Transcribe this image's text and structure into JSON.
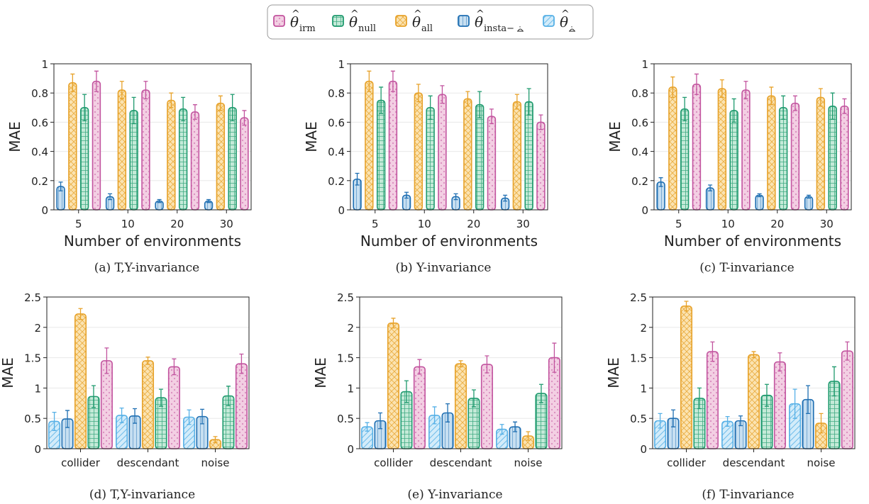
{
  "legend": {
    "items": [
      {
        "key": "irm",
        "label": "irm",
        "color": "#c2549f"
      },
      {
        "key": "null",
        "label": "null",
        "color": "#1f9a6e"
      },
      {
        "key": "all",
        "label": "all",
        "color": "#e7a22a"
      },
      {
        "key": "insta",
        "label": "insta−",
        "color": "#1f6fb2"
      },
      {
        "key": "cheb",
        "label": "",
        "color": "#56b0e6"
      }
    ]
  },
  "chart_data": [
    {
      "type": "bar",
      "caption": "(a) T,Y-invariance",
      "xlabel": "Number of environments",
      "ylabel": "MAE",
      "categories": [
        "5",
        "10",
        "20",
        "30"
      ],
      "ylim": [
        0,
        1
      ],
      "yticks": [
        "0",
        "0.2",
        "0.4",
        "0.6",
        "0.8",
        "1"
      ],
      "grid": true,
      "series": [
        {
          "key": "insta",
          "values": [
            0.16,
            0.09,
            0.06,
            0.06
          ],
          "err": [
            0.03,
            0.02,
            0.01,
            0.01
          ]
        },
        {
          "key": "all",
          "values": [
            0.87,
            0.82,
            0.75,
            0.73
          ],
          "err": [
            0.06,
            0.06,
            0.05,
            0.05
          ]
        },
        {
          "key": "null",
          "values": [
            0.7,
            0.68,
            0.69,
            0.7
          ],
          "err": [
            0.09,
            0.09,
            0.08,
            0.09
          ]
        },
        {
          "key": "irm",
          "values": [
            0.88,
            0.82,
            0.67,
            0.63
          ],
          "err": [
            0.07,
            0.06,
            0.05,
            0.05
          ]
        }
      ]
    },
    {
      "type": "bar",
      "caption": "(b) Y-invariance",
      "xlabel": "Number of environments",
      "ylabel": "MAE",
      "categories": [
        "5",
        "10",
        "20",
        "30"
      ],
      "ylim": [
        0,
        1
      ],
      "yticks": [
        "0",
        "0.2",
        "0.4",
        "0.6",
        "0.8",
        "1"
      ],
      "grid": true,
      "series": [
        {
          "key": "insta",
          "values": [
            0.21,
            0.1,
            0.09,
            0.08
          ],
          "err": [
            0.04,
            0.02,
            0.02,
            0.02
          ]
        },
        {
          "key": "all",
          "values": [
            0.88,
            0.8,
            0.76,
            0.74
          ],
          "err": [
            0.07,
            0.06,
            0.05,
            0.05
          ]
        },
        {
          "key": "null",
          "values": [
            0.75,
            0.7,
            0.72,
            0.74
          ],
          "err": [
            0.09,
            0.08,
            0.09,
            0.09
          ]
        },
        {
          "key": "irm",
          "values": [
            0.88,
            0.79,
            0.64,
            0.6
          ],
          "err": [
            0.07,
            0.06,
            0.05,
            0.05
          ]
        }
      ]
    },
    {
      "type": "bar",
      "caption": "(c) T-invariance",
      "xlabel": "Number of environments",
      "ylabel": "MAE",
      "categories": [
        "5",
        "10",
        "20",
        "30"
      ],
      "ylim": [
        0,
        1
      ],
      "yticks": [
        "0",
        "0.2",
        "0.4",
        "0.6",
        "0.8",
        "1"
      ],
      "grid": true,
      "series": [
        {
          "key": "insta",
          "values": [
            0.19,
            0.15,
            0.1,
            0.09
          ],
          "err": [
            0.03,
            0.02,
            0.01,
            0.01
          ]
        },
        {
          "key": "all",
          "values": [
            0.84,
            0.83,
            0.78,
            0.77
          ],
          "err": [
            0.07,
            0.06,
            0.06,
            0.06
          ]
        },
        {
          "key": "null",
          "values": [
            0.69,
            0.68,
            0.7,
            0.71
          ],
          "err": [
            0.08,
            0.08,
            0.08,
            0.09
          ]
        },
        {
          "key": "irm",
          "values": [
            0.86,
            0.82,
            0.73,
            0.71
          ],
          "err": [
            0.07,
            0.06,
            0.05,
            0.05
          ]
        }
      ]
    },
    {
      "type": "bar",
      "caption": "(d) T,Y-invariance",
      "xlabel": "",
      "ylabel": "MAE",
      "categories": [
        "collider",
        "descendant",
        "noise"
      ],
      "ylim": [
        0,
        2.5
      ],
      "yticks": [
        "0",
        "0.5",
        "1",
        "1.5",
        "2",
        "2.5"
      ],
      "grid": true,
      "series": [
        {
          "key": "cheb",
          "values": [
            0.45,
            0.55,
            0.52
          ],
          "err": [
            0.15,
            0.12,
            0.12
          ]
        },
        {
          "key": "insta",
          "values": [
            0.49,
            0.54,
            0.53
          ],
          "err": [
            0.14,
            0.12,
            0.12
          ]
        },
        {
          "key": "all",
          "values": [
            2.22,
            1.45,
            0.15
          ],
          "err": [
            0.09,
            0.06,
            0.05
          ]
        },
        {
          "key": "null",
          "values": [
            0.86,
            0.84,
            0.87
          ],
          "err": [
            0.18,
            0.14,
            0.16
          ]
        },
        {
          "key": "irm",
          "values": [
            1.45,
            1.35,
            1.4
          ],
          "err": [
            0.21,
            0.13,
            0.16
          ]
        }
      ]
    },
    {
      "type": "bar",
      "caption": "(e) Y-invariance",
      "xlabel": "",
      "ylabel": "MAE",
      "categories": [
        "collider",
        "descendant",
        "noise"
      ],
      "ylim": [
        0,
        2.5
      ],
      "yticks": [
        "0",
        "0.5",
        "1",
        "1.5",
        "2",
        "2.5"
      ],
      "grid": true,
      "series": [
        {
          "key": "cheb",
          "values": [
            0.36,
            0.55,
            0.32
          ],
          "err": [
            0.07,
            0.14,
            0.08
          ]
        },
        {
          "key": "insta",
          "values": [
            0.46,
            0.59,
            0.36
          ],
          "err": [
            0.13,
            0.15,
            0.08
          ]
        },
        {
          "key": "all",
          "values": [
            2.07,
            1.4,
            0.21
          ],
          "err": [
            0.08,
            0.05,
            0.07
          ]
        },
        {
          "key": "null",
          "values": [
            0.94,
            0.83,
            0.91
          ],
          "err": [
            0.18,
            0.14,
            0.15
          ]
        },
        {
          "key": "irm",
          "values": [
            1.35,
            1.39,
            1.5
          ],
          "err": [
            0.12,
            0.14,
            0.24
          ]
        }
      ]
    },
    {
      "type": "bar",
      "caption": "(f) T-invariance",
      "xlabel": "",
      "ylabel": "MAE",
      "categories": [
        "collider",
        "descendant",
        "noise"
      ],
      "ylim": [
        0,
        2.5
      ],
      "yticks": [
        "0",
        "0.5",
        "1",
        "1.5",
        "2",
        "2.5"
      ],
      "grid": true,
      "series": [
        {
          "key": "cheb",
          "values": [
            0.46,
            0.45,
            0.74
          ],
          "err": [
            0.12,
            0.08,
            0.24
          ]
        },
        {
          "key": "insta",
          "values": [
            0.5,
            0.46,
            0.81
          ],
          "err": [
            0.14,
            0.08,
            0.23
          ]
        },
        {
          "key": "all",
          "values": [
            2.35,
            1.55,
            0.42
          ],
          "err": [
            0.08,
            0.05,
            0.16
          ]
        },
        {
          "key": "null",
          "values": [
            0.83,
            0.88,
            1.11
          ],
          "err": [
            0.17,
            0.18,
            0.24
          ]
        },
        {
          "key": "irm",
          "values": [
            1.6,
            1.43,
            1.61
          ],
          "err": [
            0.16,
            0.15,
            0.15
          ]
        }
      ]
    }
  ]
}
